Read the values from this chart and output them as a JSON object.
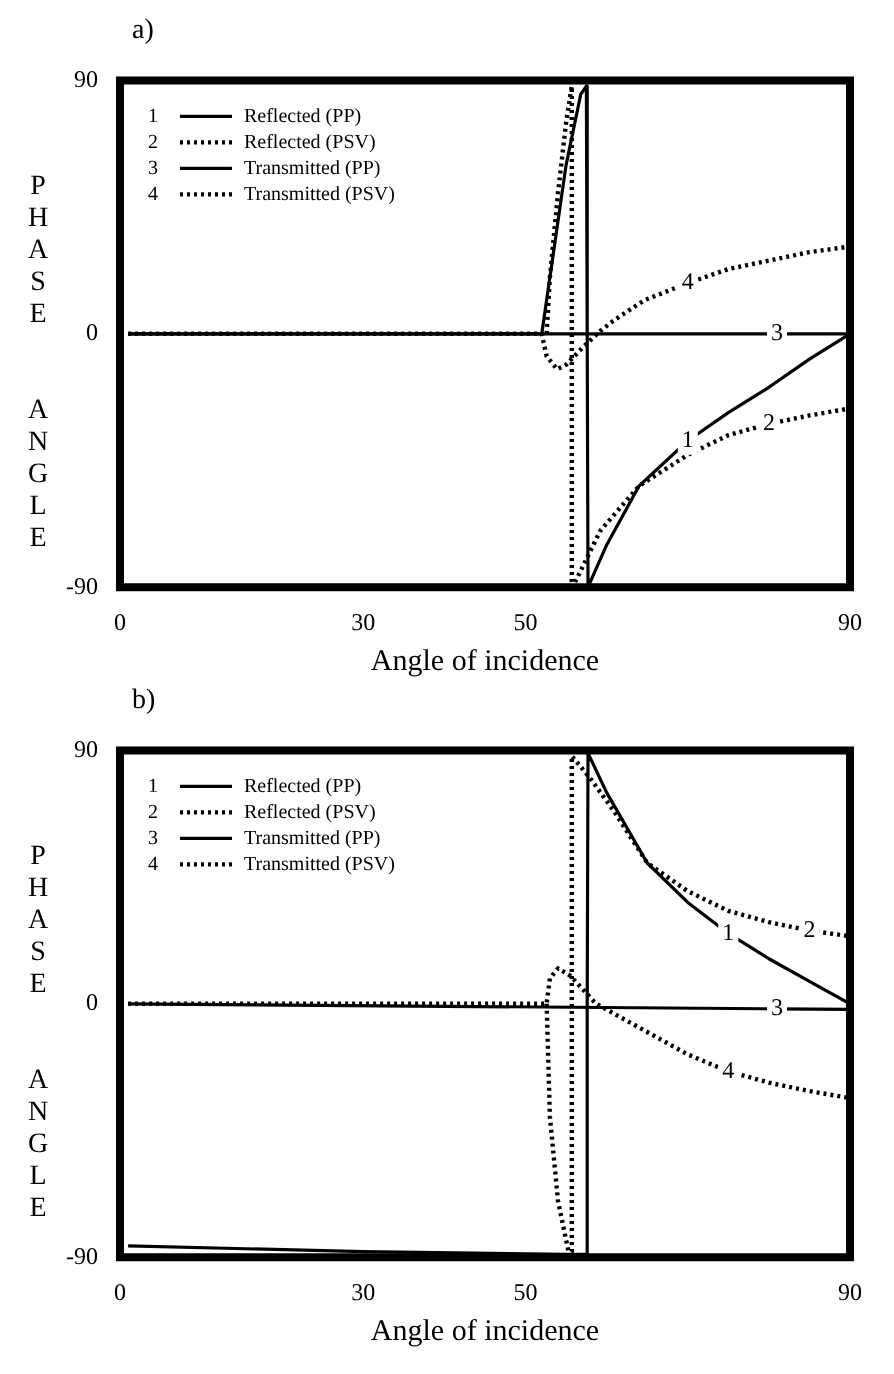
{
  "chart_data": [
    {
      "type": "line",
      "title": "a)",
      "xlabel": "Angle of incidence",
      "ylabel": "PHASE ANGLE",
      "xlim": [
        0,
        90
      ],
      "xticks": [
        0,
        30,
        50,
        90
      ],
      "ylim": [
        -90,
        90
      ],
      "yticks": [
        -90,
        0,
        90
      ],
      "grid": false,
      "legend": "top left",
      "marker": "none",
      "series": [
        {
          "name": "Reflected (PP)",
          "color": "#000000",
          "line_style": "solid",
          "x": [
            1,
            52,
            53.5,
            55,
            56.8,
            57.5,
            57.6,
            57.7,
            60,
            64,
            70,
            75,
            80,
            85,
            90
          ],
          "values": [
            0,
            0,
            30,
            60,
            85,
            88,
            0,
            -90,
            -75,
            -54,
            -38,
            -28,
            -19,
            -9,
            0
          ]
        },
        {
          "name": "Reflected (PSV)",
          "color": "#000000",
          "line_style": "dotted",
          "x": [
            52.6,
            53,
            54,
            55,
            55.7,
            55.7,
            55.8,
            59.2,
            64,
            70,
            75,
            80,
            85,
            90
          ],
          "values": [
            0,
            20,
            50,
            75,
            88,
            -88,
            -90,
            -70,
            -54,
            -43,
            -36,
            -32,
            -29,
            -26.5
          ]
        },
        {
          "name": "Transmitted (PP)",
          "color": "#000000",
          "line_style": "solid",
          "x": [
            1,
            81,
            90
          ],
          "values": [
            0,
            0,
            0
          ]
        },
        {
          "name": "Transmitted (PSV)",
          "color": "#000000",
          "line_style": "dotted",
          "x": [
            1,
            52,
            52.6,
            53.9,
            55,
            57,
            59.2,
            61,
            64.7,
            70,
            75,
            80,
            85,
            90
          ],
          "values": [
            0,
            0,
            -8,
            -12.6,
            -11,
            -5,
            1,
            5,
            12,
            18,
            23,
            26,
            29,
            31
          ]
        }
      ],
      "annotations": [
        {
          "text": "1",
          "x": 70,
          "y": -38
        },
        {
          "text": "2",
          "x": 80,
          "y": -32
        },
        {
          "text": "3",
          "x": 81,
          "y": 0
        },
        {
          "text": "4",
          "x": 70,
          "y": 18
        }
      ]
    },
    {
      "type": "line",
      "title": "b)",
      "xlabel": "Angle of incidence",
      "ylabel": "PHASE ANGLE",
      "xlim": [
        0,
        90
      ],
      "xticks": [
        0,
        30,
        50,
        90
      ],
      "ylim": [
        -90,
        90
      ],
      "yticks": [
        -90,
        0,
        90
      ],
      "grid": false,
      "legend": "top left",
      "marker": "none",
      "series": [
        {
          "name": "Reflected (PP)",
          "color": "#000000",
          "line_style": "solid",
          "x": [
            1,
            30,
            55,
            57.5,
            57.6,
            57.7,
            60,
            65,
            70,
            75,
            80,
            85,
            90
          ],
          "values": [
            -86,
            -88,
            -89,
            -89,
            0,
            89,
            75,
            50,
            36,
            25,
            16,
            8,
            0
          ]
        },
        {
          "name": "Reflected (PSV)",
          "color": "#000000",
          "line_style": "dotted",
          "x": [
            52.6,
            53,
            54,
            55.3,
            55.7,
            55.7,
            58,
            61,
            65,
            70,
            75,
            80,
            85,
            90
          ],
          "values": [
            0,
            -40,
            -70,
            -88,
            -88,
            88,
            80,
            68,
            50,
            40,
            33,
            29,
            26,
            24
          ]
        },
        {
          "name": "Transmitted (PP)",
          "color": "#000000",
          "line_style": "solid",
          "x": [
            1,
            81,
            90
          ],
          "values": [
            0,
            -1.8,
            -2
          ]
        },
        {
          "name": "Transmitted (PSV)",
          "color": "#000000",
          "line_style": "dotted",
          "x": [
            1,
            52.6,
            53,
            54,
            55.5,
            58.7,
            65,
            70,
            75,
            80,
            85,
            90
          ],
          "values": [
            0,
            0,
            9,
            12.6,
            10,
            0,
            -10,
            -18,
            -24,
            -28,
            -31,
            -33.5
          ]
        }
      ],
      "annotations": [
        {
          "text": "1",
          "x": 75,
          "y": 25
        },
        {
          "text": "2",
          "x": 85,
          "y": 26
        },
        {
          "text": "3",
          "x": 81,
          "y": -1.8
        },
        {
          "text": "4",
          "x": 75,
          "y": -24
        }
      ]
    }
  ]
}
